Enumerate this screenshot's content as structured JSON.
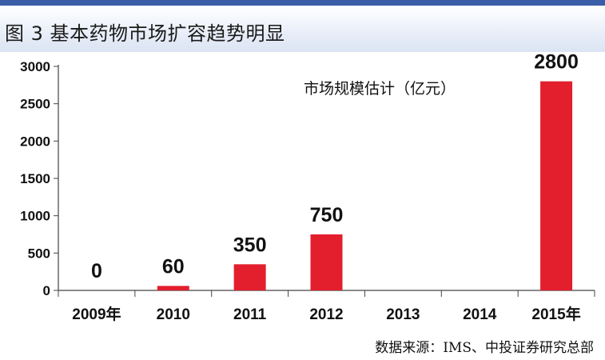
{
  "header": {
    "title": "图 3  基本药物市场扩容趋势明显"
  },
  "source_note": "数据来源：IMS、中投证券研究总部",
  "colors": {
    "bar": "#e31e2d",
    "accent": "#3a5ea8",
    "axis": "#444444",
    "grid": "#d9d9d9"
  },
  "chart_data": {
    "type": "bar",
    "categories": [
      "2009年",
      "2010",
      "2011",
      "2012",
      "2013",
      "2014",
      "2015年"
    ],
    "values": [
      0,
      60,
      350,
      750,
      null,
      null,
      2800
    ],
    "data_labels": [
      "0",
      "60",
      "350",
      "750",
      "",
      "",
      "2800"
    ],
    "series": [
      {
        "name": "市场规模估计（亿元）",
        "values": [
          0,
          60,
          350,
          750,
          null,
          null,
          2800
        ]
      }
    ],
    "yticks": [
      0,
      500,
      1000,
      1500,
      2000,
      2500,
      3000
    ],
    "ylim": [
      0,
      3000
    ],
    "grid": true,
    "legend": "top-right"
  }
}
